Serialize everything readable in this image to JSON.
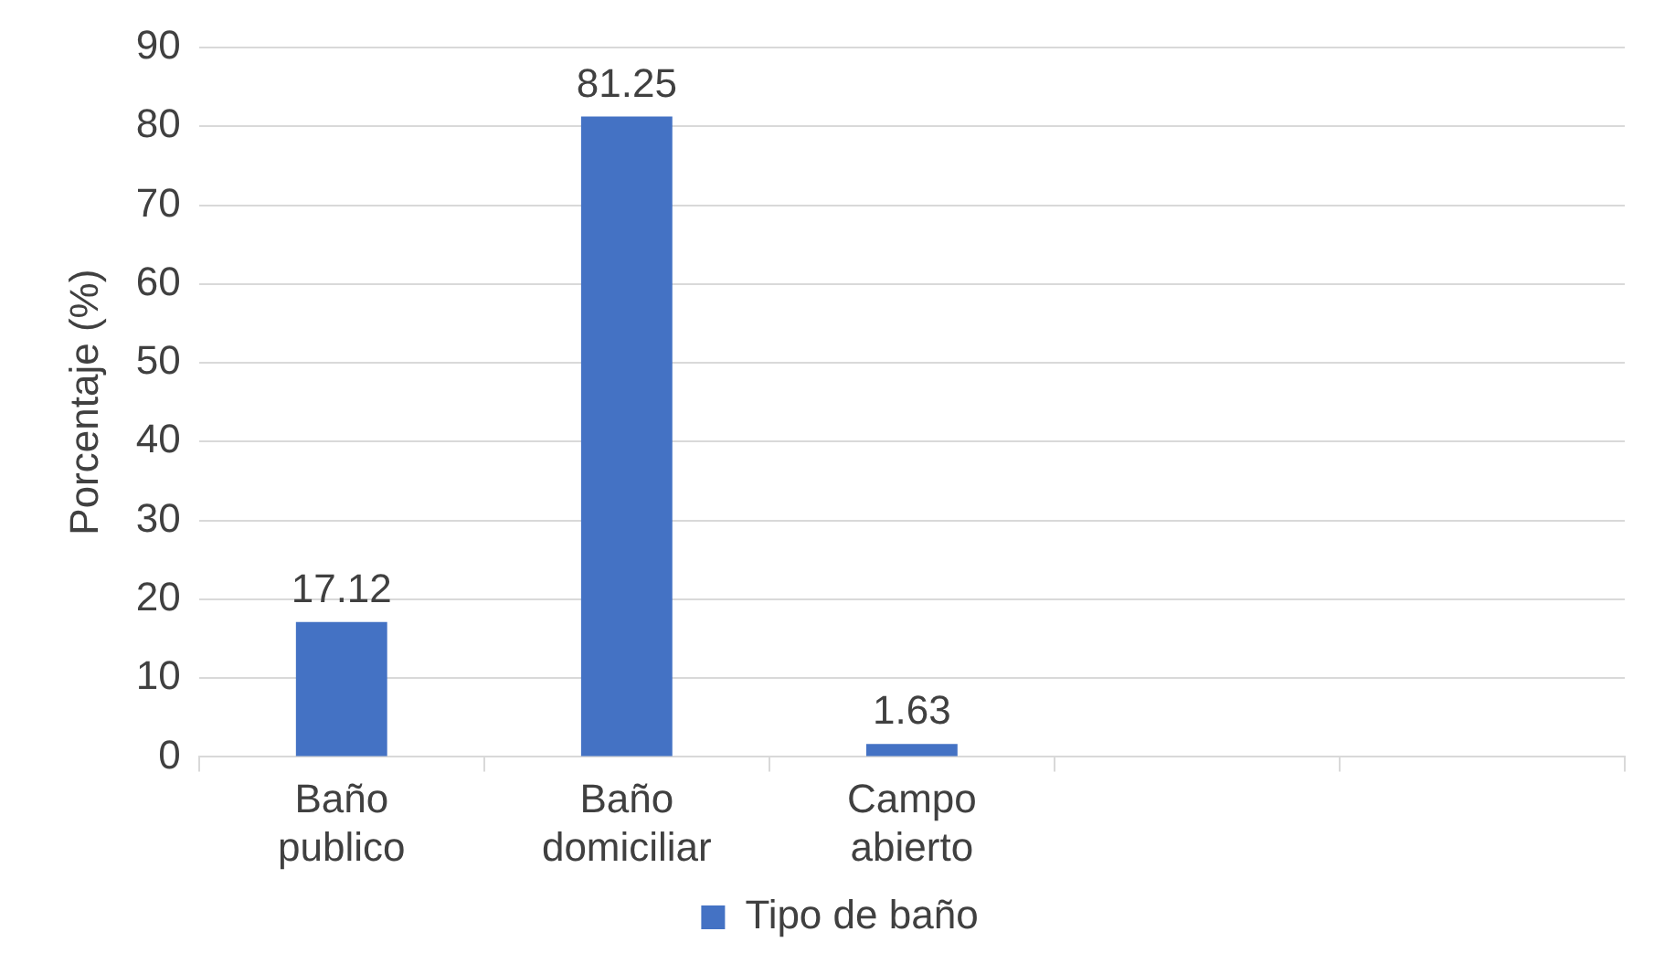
{
  "chart_data": {
    "type": "bar",
    "ylabel": "Porcentaje (%)",
    "categories": [
      "Baño publico",
      "Baño domiciliar",
      "Campo abierto",
      null,
      null
    ],
    "series": [
      {
        "name": "Tipo de baño",
        "color": "#4472c4",
        "values": [
          17.12,
          81.25,
          1.63,
          null,
          null
        ]
      }
    ],
    "ylim": [
      0,
      90
    ],
    "yticks": [
      0,
      10,
      20,
      30,
      40,
      50,
      60,
      70,
      80,
      90
    ],
    "grid": "y",
    "legend": "bottom",
    "data_labels": true
  }
}
